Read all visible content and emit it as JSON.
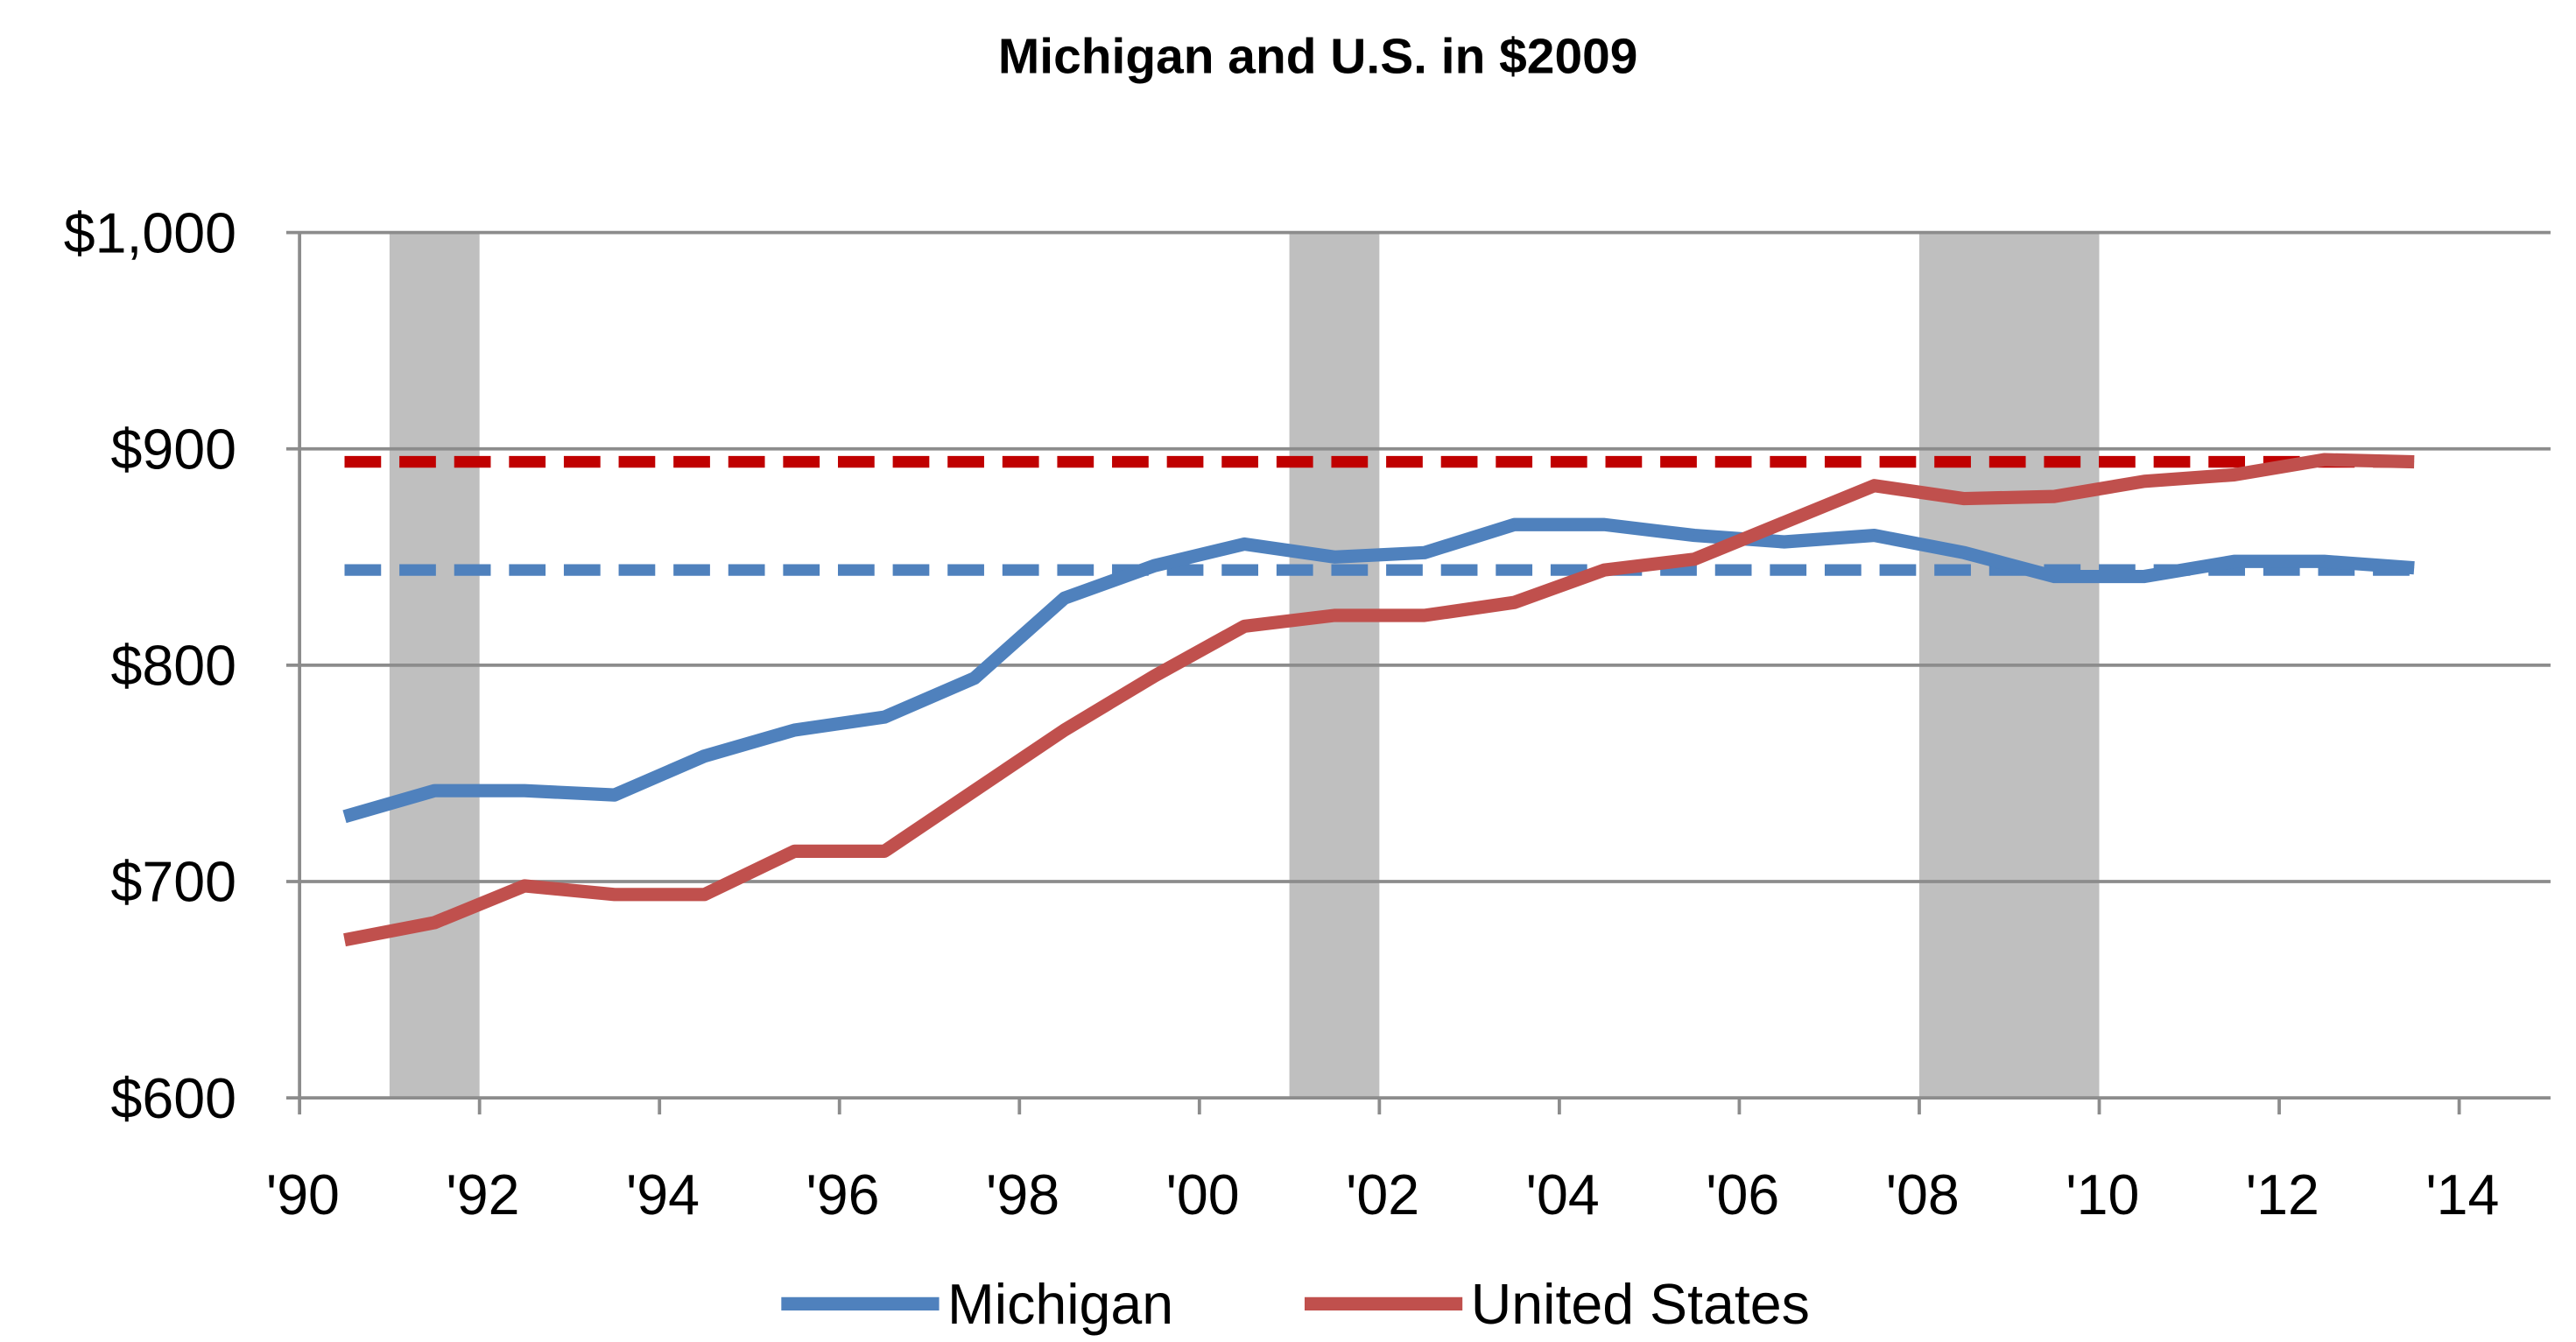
{
  "chart_data": {
    "type": "line",
    "title": "Michigan and U.S. in $2009",
    "xlabel": "",
    "ylabel": "",
    "ylim": [
      600,
      1000
    ],
    "yticks": [
      "$600",
      "$700",
      "$800",
      "$900",
      "$1,000"
    ],
    "ytick_values": [
      600,
      700,
      800,
      900,
      1000
    ],
    "xlim": [
      1990,
      2014
    ],
    "xticks": [
      "'90",
      "'92",
      "'94",
      "'96",
      "'98",
      "'00",
      "'02",
      "'04",
      "'06",
      "'08",
      "'10",
      "'12",
      "'14"
    ],
    "xtick_values": [
      1990,
      1992,
      1994,
      1996,
      1998,
      2000,
      2002,
      2004,
      2006,
      2008,
      2010,
      2012,
      2014
    ],
    "grid": "horizontal",
    "legend_position": "bottom",
    "x": [
      1990,
      1991,
      1992,
      1993,
      1994,
      1995,
      1996,
      1997,
      1998,
      1999,
      2000,
      2001,
      2002,
      2003,
      2004,
      2005,
      2006,
      2007,
      2008,
      2009,
      2010,
      2011,
      2012,
      2013
    ],
    "series": [
      {
        "name": "Michigan",
        "color": "#4f81bd",
        "values": [
          730,
          742,
          742,
          740,
          758,
          770,
          776,
          794,
          831,
          846,
          856,
          850,
          852,
          865,
          865,
          860,
          857,
          860,
          852,
          841,
          841,
          848,
          848,
          845
        ]
      },
      {
        "name": "United States",
        "color": "#c0504d",
        "values": [
          673,
          681,
          698,
          694,
          694,
          714,
          714,
          742,
          770,
          795,
          818,
          823,
          823,
          829,
          844,
          849,
          866,
          883,
          877,
          878,
          885,
          888,
          895,
          894
        ]
      }
    ],
    "reference_lines": [
      {
        "value": 894,
        "color": "#c00000",
        "style": "dashed"
      },
      {
        "value": 844,
        "color": "#4f81bd",
        "style": "dashed"
      }
    ],
    "shaded_periods": [
      {
        "start": 1991,
        "end": 1992,
        "color": "#bfbfbf"
      },
      {
        "start": 2001,
        "end": 2002,
        "color": "#bfbfbf"
      },
      {
        "start": 2008,
        "end": 2010,
        "color": "#bfbfbf"
      }
    ]
  }
}
